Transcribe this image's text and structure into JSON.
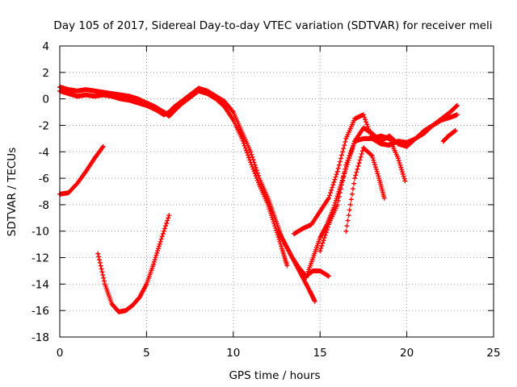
{
  "chart_data": {
    "type": "scatter",
    "title": "Day 105 of 2017, Sidereal Day-to-day VTEC variation (SDTVAR) for receiver meli",
    "xlabel": "GPS time / hours",
    "ylabel": "SDTVAR / TECUs",
    "xlim": [
      0,
      25
    ],
    "ylim": [
      -18,
      4
    ],
    "x_ticks": [
      0,
      5,
      10,
      15,
      20,
      25
    ],
    "y_ticks": [
      -18,
      -16,
      -14,
      -12,
      -10,
      -8,
      -6,
      -4,
      -2,
      0,
      2,
      4
    ],
    "grid": true,
    "marker": "+",
    "series_color": "#ff0000",
    "series": [
      {
        "name": "track-main-upper",
        "x": [
          0.0,
          0.5,
          1.0,
          1.5,
          2.0,
          2.5,
          3.0,
          3.5,
          4.0,
          4.5,
          5.0,
          5.5,
          6.0,
          6.3,
          6.6,
          7.0,
          7.5,
          8.0,
          8.5,
          9.0,
          9.5,
          10.0,
          10.5,
          11.0,
          11.5,
          12.0,
          12.4,
          12.8,
          13.2,
          13.6,
          14.0,
          14.4,
          14.7
        ],
        "y": [
          0.6,
          0.4,
          0.2,
          0.3,
          0.2,
          0.3,
          0.2,
          0.0,
          -0.1,
          -0.3,
          -0.5,
          -0.8,
          -1.2,
          -1.0,
          -0.6,
          -0.2,
          0.3,
          0.8,
          0.6,
          0.2,
          -0.2,
          -1.0,
          -2.5,
          -4.0,
          -6.0,
          -7.5,
          -9.0,
          -10.5,
          -11.5,
          -12.5,
          -13.5,
          -14.5,
          -15.3
        ]
      },
      {
        "name": "track-main-lower",
        "x": [
          0.0,
          0.5,
          1.0,
          1.5,
          2.0,
          2.5,
          3.0,
          3.5,
          4.0,
          4.5,
          5.0,
          5.5,
          6.0,
          6.3,
          6.6,
          7.0,
          7.5,
          8.0,
          8.5,
          9.0,
          9.5,
          10.0,
          10.5,
          11.0,
          11.5,
          12.0,
          12.4,
          12.8,
          13.1
        ],
        "y": [
          0.9,
          0.7,
          0.6,
          0.7,
          0.6,
          0.5,
          0.4,
          0.3,
          0.2,
          0.0,
          -0.3,
          -0.6,
          -1.0,
          -1.3,
          -0.9,
          -0.4,
          0.1,
          0.6,
          0.4,
          0.0,
          -0.6,
          -1.6,
          -3.0,
          -4.8,
          -6.5,
          -8.0,
          -9.6,
          -11.3,
          -12.6
        ]
      },
      {
        "name": "track-rise-a",
        "x": [
          13.5,
          14.0,
          14.5,
          15.0,
          15.5,
          16.0,
          16.5,
          17.0,
          17.5,
          18.0,
          18.5,
          19.0,
          19.5,
          20.0,
          20.5,
          21.0,
          21.5,
          22.0,
          22.5,
          22.9
        ],
        "y": [
          -10.2,
          -9.8,
          -9.5,
          -8.5,
          -7.5,
          -5.5,
          -3.0,
          -1.5,
          -1.2,
          -3.0,
          -3.4,
          -3.5,
          -3.2,
          -3.3,
          -3.0,
          -2.6,
          -2.0,
          -1.5,
          -1.0,
          -0.5
        ]
      },
      {
        "name": "track-rise-b",
        "x": [
          14.2,
          14.6,
          15.0,
          15.4,
          15.8,
          16.2,
          16.6,
          17.0,
          17.5,
          18.0,
          18.5,
          19.0,
          19.5,
          20.0,
          20.5,
          21.0,
          21.5,
          22.0,
          22.5,
          22.9
        ],
        "y": [
          -13.5,
          -12.0,
          -10.5,
          -9.5,
          -8.2,
          -6.5,
          -4.8,
          -3.2,
          -2.2,
          -2.6,
          -3.2,
          -2.8,
          -3.4,
          -3.6,
          -3.0,
          -2.4,
          -2.0,
          -1.6,
          -1.4,
          -1.2
        ]
      },
      {
        "name": "track-rise-c",
        "x": [
          15.0,
          15.5,
          16.0,
          16.5,
          17.0,
          17.5,
          18.0,
          18.5,
          19.0,
          19.5,
          19.9
        ],
        "y": [
          -11.5,
          -9.5,
          -8.0,
          -5.0,
          -3.2,
          -3.0,
          -3.0,
          -2.8,
          -3.0,
          -4.5,
          -6.2
        ]
      },
      {
        "name": "track-dip-13",
        "x": [
          12.6,
          13.0,
          13.4,
          13.8,
          14.2,
          14.6,
          15.0,
          15.5
        ],
        "y": [
          -10.0,
          -11.0,
          -12.0,
          -12.8,
          -13.4,
          -13.0,
          -13.0,
          -13.4
        ]
      },
      {
        "name": "track-17-18",
        "x": [
          16.5,
          17.0,
          17.5,
          18.0,
          18.4,
          18.7
        ],
        "y": [
          -10.0,
          -6.0,
          -3.7,
          -4.3,
          -6.0,
          -7.5
        ]
      },
      {
        "name": "track-early-left",
        "x": [
          0.0,
          0.5,
          1.0,
          1.5,
          2.0,
          2.5
        ],
        "y": [
          -7.2,
          -7.1,
          -6.4,
          -5.5,
          -4.5,
          -3.6
        ]
      },
      {
        "name": "track-u-bottom",
        "x": [
          2.2,
          2.6,
          3.0,
          3.4,
          3.8,
          4.2,
          4.6,
          5.0,
          5.4,
          5.8,
          6.3
        ],
        "y": [
          -11.7,
          -14.0,
          -15.5,
          -16.1,
          -16.0,
          -15.6,
          -15.0,
          -14.0,
          -12.5,
          -10.8,
          -8.8
        ]
      },
      {
        "name": "track-end-right",
        "x": [
          22.1,
          22.4,
          22.8
        ],
        "y": [
          -3.2,
          -2.8,
          -2.4
        ]
      }
    ]
  }
}
